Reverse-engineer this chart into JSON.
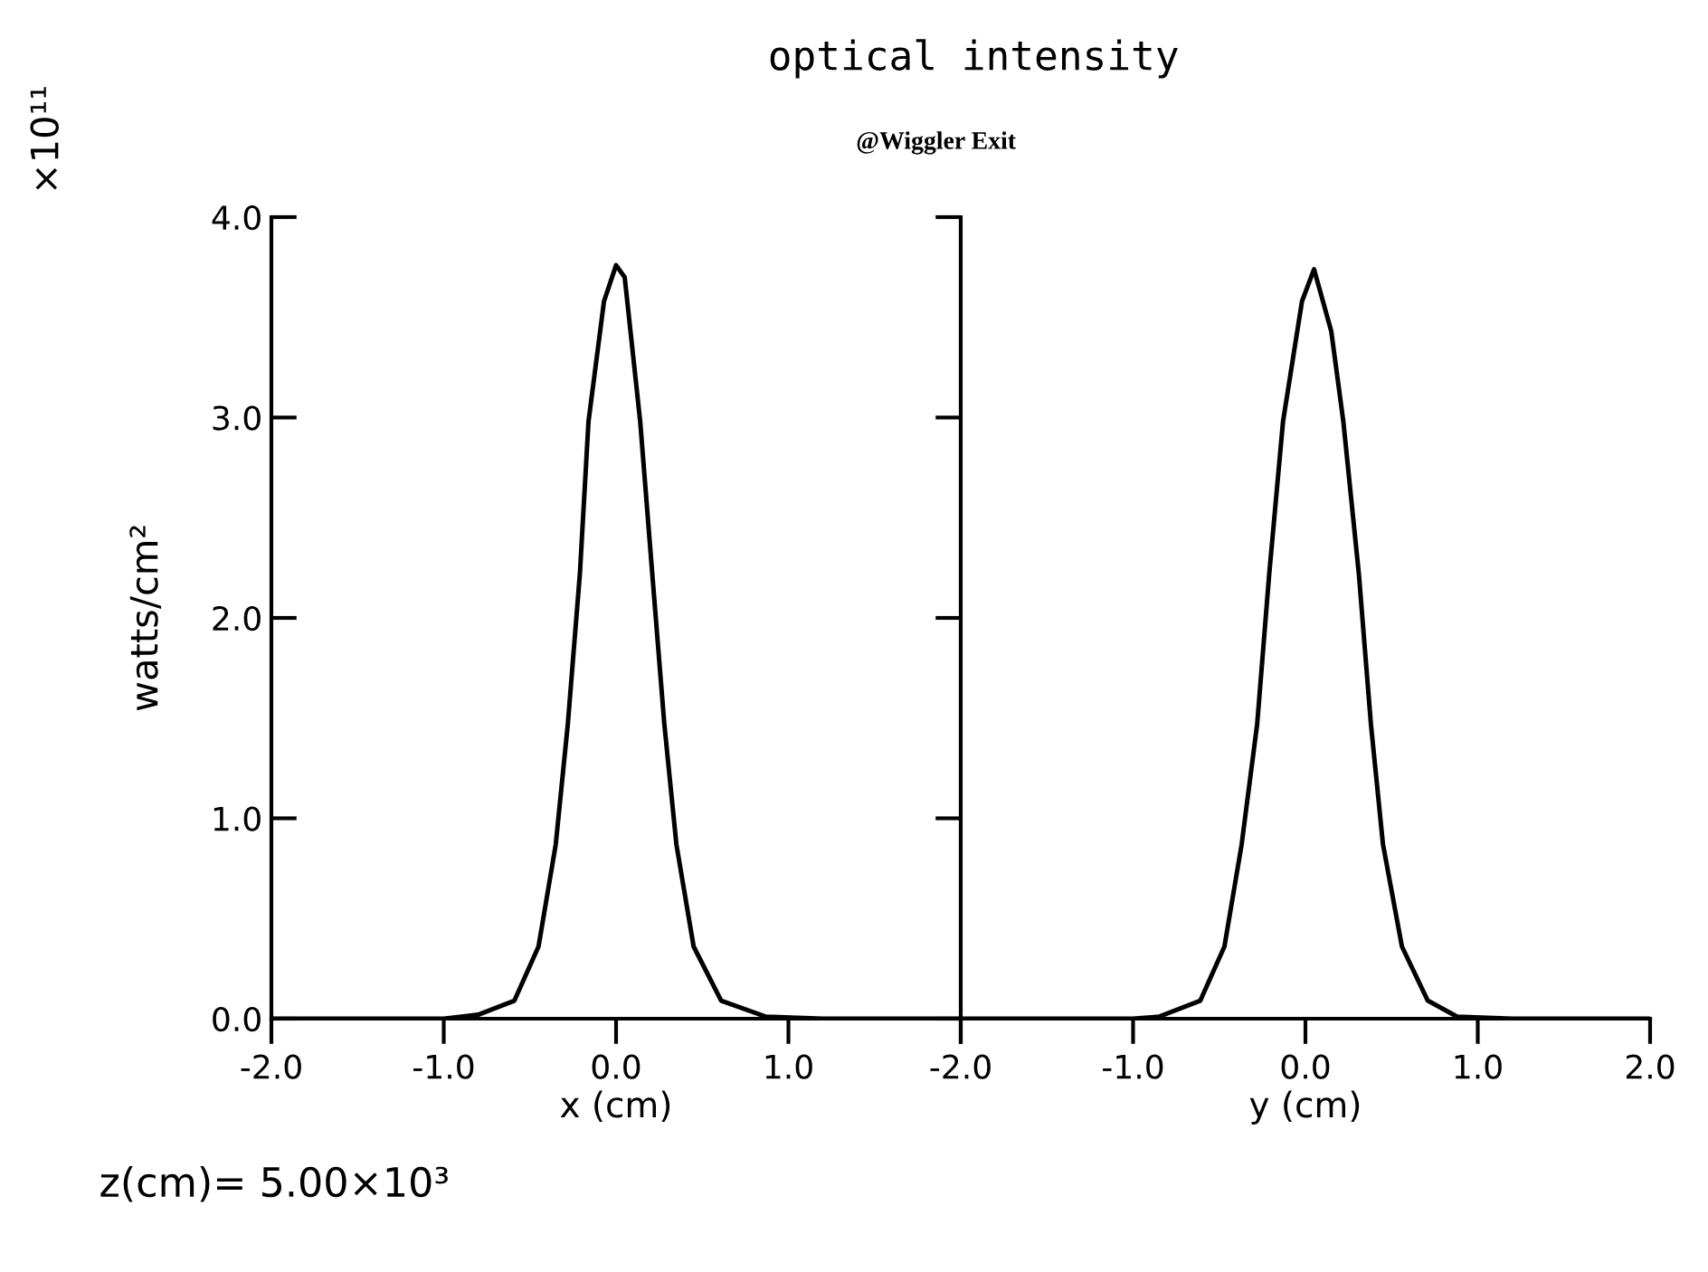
{
  "chart_data": [
    {
      "type": "line",
      "title": "optical intensity",
      "subtitle": "@Wiggler Exit",
      "xlabel": "x (cm)",
      "ylabel": "watts/cm²",
      "color": "#000000",
      "x": [
        -2.0,
        -1.0,
        -0.8,
        -0.59,
        -0.45,
        -0.35,
        -0.28,
        -0.21,
        -0.16,
        -0.07,
        0.0,
        0.05,
        0.14,
        0.21,
        0.28,
        0.35,
        0.45,
        0.61,
        0.87,
        1.2,
        2.0
      ],
      "values": [
        0.0,
        0.0,
        0.02,
        0.09,
        0.36,
        0.87,
        1.47,
        2.22,
        2.98,
        3.58,
        3.76,
        3.7,
        2.98,
        2.22,
        1.47,
        0.87,
        0.36,
        0.09,
        0.01,
        0.0,
        0.0
      ],
      "xlim": [
        -2.0,
        2.0
      ],
      "xticks": [
        {
          "value": -2.0,
          "label": "-2.0"
        },
        {
          "value": -1.0,
          "label": "-1.0"
        },
        {
          "value": 0.0,
          "label": "0.0"
        },
        {
          "value": 1.0,
          "label": "1.0"
        },
        {
          "value": 2.0,
          "label": null
        }
      ],
      "ylim": [
        0.0,
        4.0
      ],
      "yticks": [
        {
          "value": 0.0,
          "label": "0.0"
        },
        {
          "value": 1.0,
          "label": "1.0"
        },
        {
          "value": 2.0,
          "label": "2.0"
        },
        {
          "value": 3.0,
          "label": "3.0"
        },
        {
          "value": 4.0,
          "label": "4.0"
        }
      ],
      "annotations": [
        "×10¹¹",
        "z(cm)= 5.00×10³"
      ]
    },
    {
      "type": "line",
      "xlabel": "y (cm)",
      "color": "#000000",
      "tick_labels": "x",
      "x": [
        -2.0,
        -1.0,
        -0.85,
        -0.61,
        -0.47,
        -0.37,
        -0.28,
        -0.21,
        -0.13,
        -0.02,
        0.05,
        0.15,
        0.22,
        0.31,
        0.38,
        0.45,
        0.56,
        0.71,
        0.88,
        1.2,
        2.0
      ],
      "values": [
        0.0,
        0.0,
        0.01,
        0.09,
        0.36,
        0.87,
        1.47,
        2.22,
        2.98,
        3.58,
        3.74,
        3.43,
        2.98,
        2.22,
        1.47,
        0.87,
        0.36,
        0.09,
        0.01,
        0.0,
        0.0
      ],
      "xlim": [
        -2.0,
        2.0
      ],
      "xticks": [
        {
          "value": -2.0,
          "label": "-2.0"
        },
        {
          "value": -1.0,
          "label": "-1.0"
        },
        {
          "value": 0.0,
          "label": "0.0"
        },
        {
          "value": 1.0,
          "label": "1.0"
        },
        {
          "value": 2.0,
          "label": "2.0"
        }
      ],
      "ylim": [
        0.0,
        4.0
      ],
      "yticks": [
        0.0,
        1.0,
        2.0,
        3.0,
        4.0
      ]
    }
  ]
}
